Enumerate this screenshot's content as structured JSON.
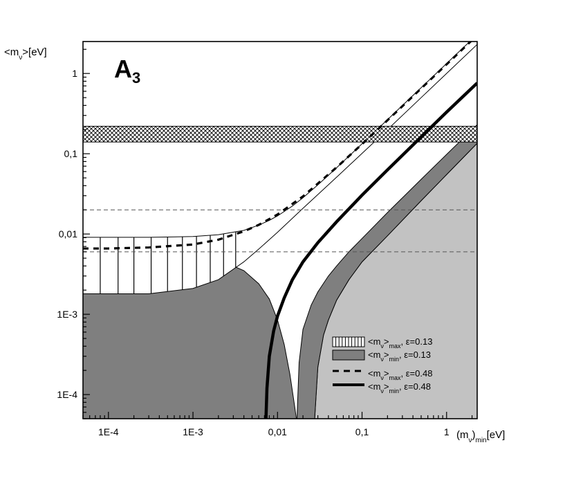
{
  "chart_data": {
    "type": "line",
    "panel_label": {
      "main": "A",
      "sub": "3"
    },
    "ylabel": {
      "pre": "<m",
      "sub": "ν",
      "post": ">[eV]"
    },
    "xlabel": {
      "pre": "(m",
      "sub": "ν",
      "mid": ")",
      "sub2": "min",
      "post": "[eV]"
    },
    "x_scale": "log",
    "y_scale": "log",
    "xlim": [
      5e-05,
      2.3
    ],
    "ylim": [
      5e-05,
      2.5
    ],
    "x_ticks": [
      {
        "value": 0.0001,
        "label": "1E-4"
      },
      {
        "value": 0.001,
        "label": "1E-3"
      },
      {
        "value": 0.01,
        "label": "0,01"
      },
      {
        "value": 0.1,
        "label": "0,1"
      },
      {
        "value": 1,
        "label": "1"
      }
    ],
    "y_ticks": [
      {
        "value": 0.0001,
        "label": "1E-4"
      },
      {
        "value": 0.001,
        "label": "1E-3"
      },
      {
        "value": 0.01,
        "label": "0,01"
      },
      {
        "value": 0.1,
        "label": "0,1"
      },
      {
        "value": 1,
        "label": "1"
      }
    ],
    "excluded_band": {
      "y_from": 0.14,
      "y_to": 0.22
    },
    "reference_lines": [
      0.02,
      0.006
    ],
    "colors": {
      "light_region": "#c2c2c2",
      "dark_region": "#7f7f7f",
      "frame": "#000000",
      "dashed_ref": "#555555"
    },
    "series": [
      {
        "name": {
          "pre": "<m",
          "sub": "ν",
          "mid": ">",
          "sub2": "max",
          "post": ", ε=0.13"
        },
        "style": "hatched-band",
        "x": [
          5e-05,
          0.0001,
          0.0003,
          0.001,
          0.002,
          0.004,
          0.006,
          0.008,
          0.01,
          0.015,
          0.02,
          0.03,
          0.05,
          0.1,
          0.2,
          0.5,
          1,
          2.3
        ],
        "upper": [
          0.0091,
          0.0091,
          0.0091,
          0.0093,
          0.0098,
          0.0111,
          0.0129,
          0.0148,
          0.0168,
          0.0223,
          0.0283,
          0.0409,
          0.0669,
          0.133,
          0.266,
          0.665,
          1.33,
          3.06
        ],
        "lower": [
          0.0018,
          0.0018,
          0.0018,
          0.0021,
          0.0027,
          0.0045,
          0.0065,
          0.0085,
          0.0105,
          0.0157,
          0.0209,
          0.031,
          0.051,
          0.101,
          0.2,
          0.5,
          1,
          2.3
        ]
      },
      {
        "name": {
          "pre": "<m",
          "sub": "ν",
          "mid": ">",
          "sub2": "min",
          "post": ", ε=0.13"
        },
        "style": "dark-fill",
        "x": [
          5e-05,
          0.0001,
          0.0003,
          0.001,
          0.002,
          0.004,
          0.006,
          0.008,
          0.01,
          0.012,
          0.014,
          0.016,
          0.0167
        ],
        "y": [
          0.006,
          0.006,
          0.0059,
          0.0055,
          0.0048,
          0.0035,
          0.0024,
          0.00155,
          0.00085,
          0.00042,
          0.00018,
          7e-05,
          5e-05
        ]
      },
      {
        "name": {
          "pre": "<m",
          "sub": "ν",
          "mid": ">",
          "sub2": "max",
          "post": ", ε=0.48"
        },
        "style": "dashed",
        "x": [
          5e-05,
          0.0001,
          0.0003,
          0.001,
          0.002,
          0.004,
          0.006,
          0.01,
          0.02,
          0.05,
          0.1,
          0.3,
          1,
          2.3
        ],
        "y": [
          0.0066,
          0.0066,
          0.0068,
          0.0074,
          0.0085,
          0.0108,
          0.013,
          0.0175,
          0.0294,
          0.0676,
          0.1318,
          0.3909,
          1.3,
          2.99
        ]
      },
      {
        "name": {
          "pre": "<m",
          "sub": "ν",
          "mid": ">",
          "sub2": "min",
          "post": ", ε=0.48"
        },
        "style": "thick-solid",
        "x": [
          0.0073,
          0.0075,
          0.008,
          0.009,
          0.01,
          0.012,
          0.015,
          0.02,
          0.03,
          0.05,
          0.1,
          0.2,
          0.5,
          1,
          2.3
        ],
        "y": [
          5e-05,
          0.00012,
          0.0003,
          0.00062,
          0.00095,
          0.0016,
          0.0027,
          0.0045,
          0.0078,
          0.0142,
          0.0305,
          0.063,
          0.162,
          0.33,
          0.76
        ]
      }
    ],
    "light_region": {
      "x": [
        0.0275,
        0.03,
        0.035,
        0.04,
        0.05,
        0.07,
        0.1,
        0.2,
        0.5,
        1,
        2.3
      ],
      "y": [
        5e-05,
        0.00022,
        0.00055,
        0.00085,
        0.0015,
        0.0027,
        0.0045,
        0.0095,
        0.026,
        0.055,
        0.135
      ]
    },
    "dark_right_strip": {
      "x_inner": [
        0.017,
        0.018,
        0.02,
        0.025,
        0.03,
        0.04,
        0.05,
        0.07,
        0.1,
        0.2,
        0.5,
        1,
        2.3
      ],
      "y_inner": [
        5e-05,
        0.00025,
        0.00065,
        0.0013,
        0.0019,
        0.003,
        0.004,
        0.006,
        0.0088,
        0.0185,
        0.048,
        0.098,
        0.23
      ]
    }
  }
}
